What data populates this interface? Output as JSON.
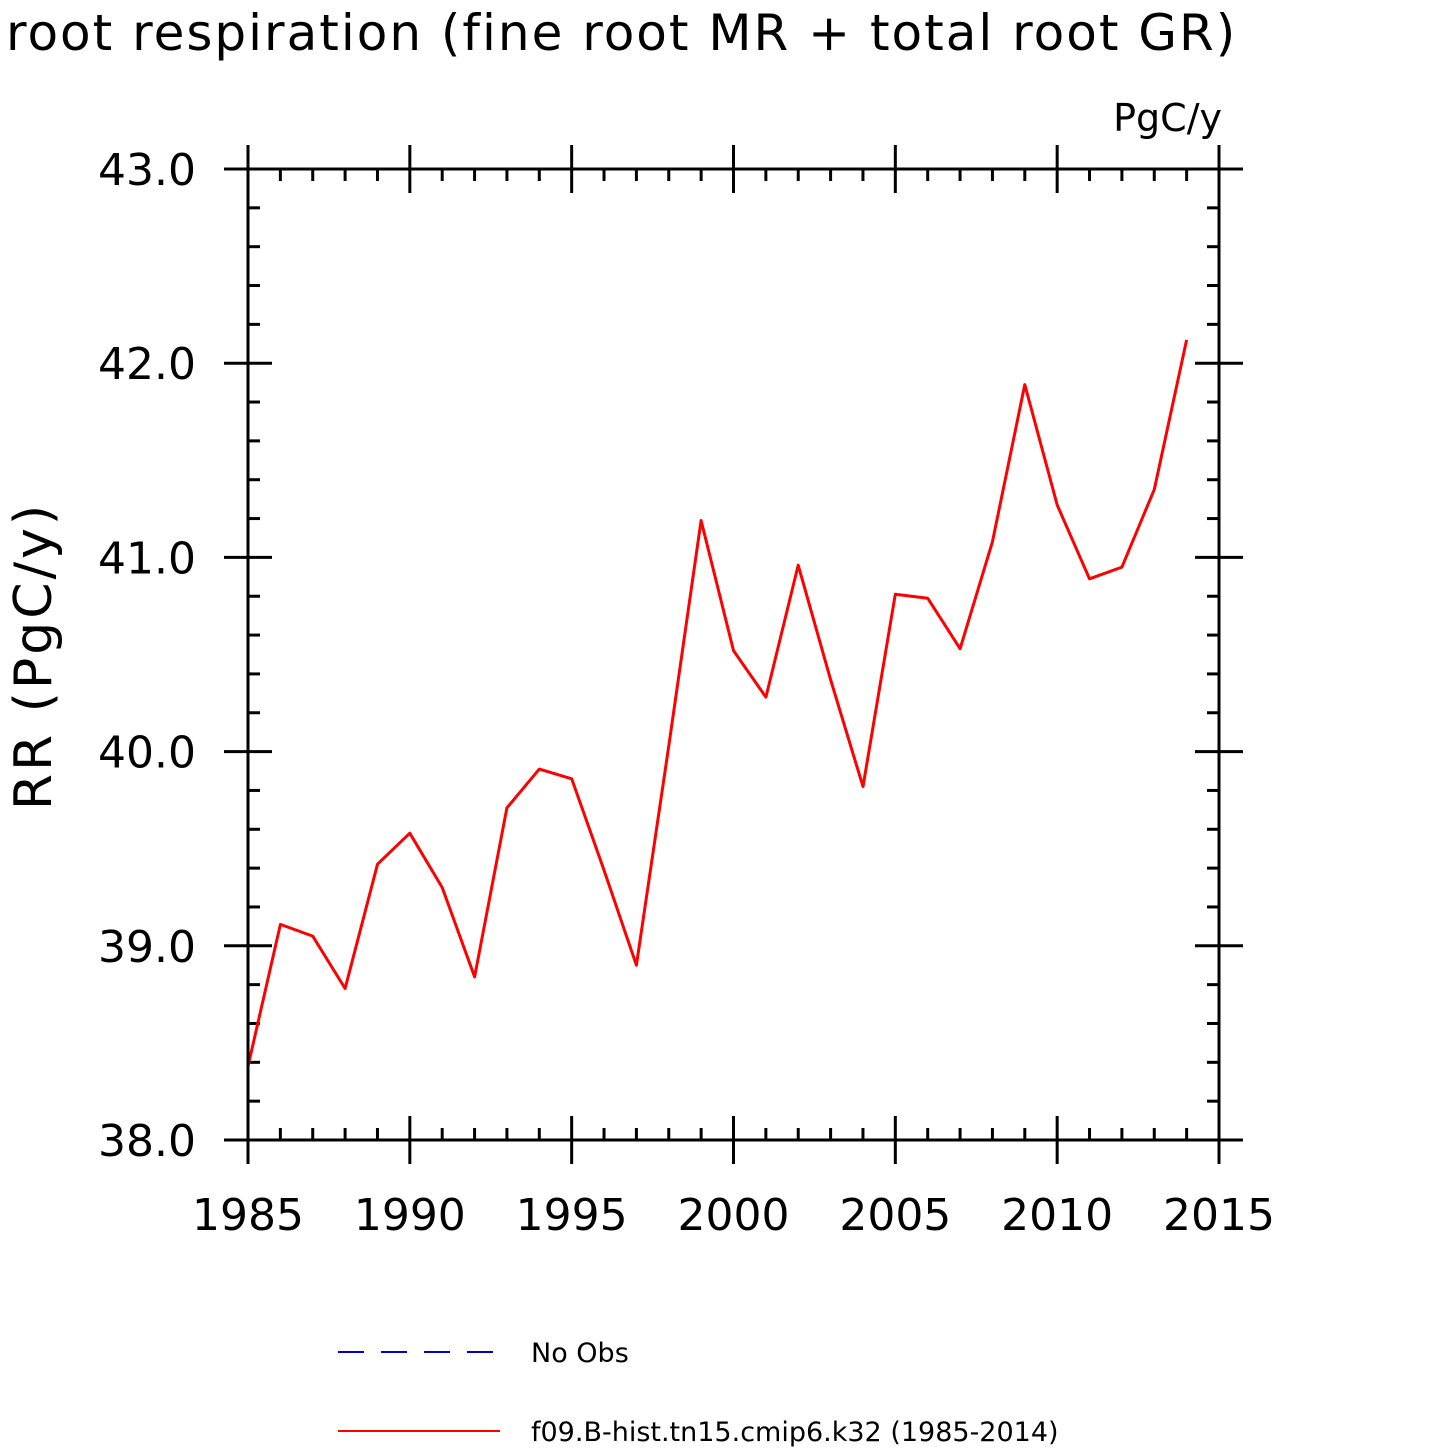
{
  "chart_data": {
    "type": "line",
    "title": "root respiration (fine root MR + total root GR)",
    "units": "PgC/y",
    "ylabel": "RR  (PgC/y)",
    "xlabel": "",
    "xlim": [
      1985,
      2015
    ],
    "ylim": [
      38.0,
      43.0
    ],
    "x_ticks": [
      1985,
      1990,
      1995,
      2000,
      2005,
      2010,
      2015
    ],
    "x_tick_labels": [
      "1985",
      "1990",
      "1995",
      "2000",
      "2005",
      "2010",
      "2015"
    ],
    "y_ticks": [
      38.0,
      39.0,
      40.0,
      41.0,
      42.0,
      43.0
    ],
    "y_tick_labels": [
      "38.0",
      "39.0",
      "40.0",
      "41.0",
      "42.0",
      "43.0"
    ],
    "grid": false,
    "legend_position": "bottom",
    "series": [
      {
        "name": "No Obs",
        "color": "#0000cc",
        "style": "dashed",
        "x": [],
        "values": []
      },
      {
        "name": "f09.B-hist.tn15.cmip6.k32 (1985-2014)",
        "color": "#ff0000",
        "style": "solid",
        "x": [
          1985,
          1986,
          1987,
          1988,
          1989,
          1990,
          1991,
          1992,
          1993,
          1994,
          1995,
          1996,
          1997,
          1998,
          1999,
          2000,
          2001,
          2002,
          2003,
          2004,
          2005,
          2006,
          2007,
          2008,
          2009,
          2010,
          2011,
          2012,
          2013,
          2014
        ],
        "values": [
          38.38,
          39.11,
          39.05,
          38.78,
          39.42,
          39.58,
          39.3,
          38.84,
          39.71,
          39.91,
          39.86,
          39.39,
          38.9,
          40.03,
          41.19,
          40.52,
          40.28,
          40.96,
          40.37,
          39.82,
          40.81,
          40.79,
          40.53,
          41.08,
          41.89,
          41.27,
          40.89,
          40.95,
          41.35,
          42.12
        ]
      }
    ]
  }
}
